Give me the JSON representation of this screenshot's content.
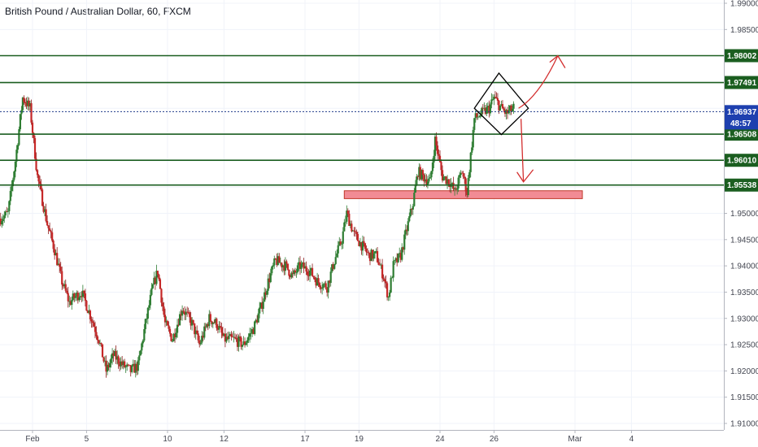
{
  "chart_data": {
    "type": "candlestick",
    "title": "British Pound / Australian Dollar, 60, FXCM",
    "ylim": [
      1.9088,
      1.992
    ],
    "y_ticks": [
      "1.99000",
      "1.98500",
      "1.98000",
      "1.97500",
      "1.97000",
      "1.96500",
      "1.96000",
      "1.95500",
      "1.95000",
      "1.94500",
      "1.94000",
      "1.93500",
      "1.93000",
      "1.92500",
      "1.92000",
      "1.91500",
      "1.91000"
    ],
    "x_ticks": [
      {
        "label": "Feb",
        "t": 13
      },
      {
        "label": "5",
        "t": 35
      },
      {
        "label": "10",
        "t": 68
      },
      {
        "label": "12",
        "t": 91
      },
      {
        "label": "17",
        "t": 124
      },
      {
        "label": "19",
        "t": 146
      },
      {
        "label": "24",
        "t": 179
      },
      {
        "label": "26",
        "t": 201
      },
      {
        "label": "Mar",
        "t": 234
      },
      {
        "label": "4",
        "t": 257
      }
    ],
    "horizontal_levels": [
      {
        "value": 1.98002,
        "label": "1.98002"
      },
      {
        "value": 1.97491,
        "label": "1.97491"
      },
      {
        "value": 1.96508,
        "label": "1.96508"
      },
      {
        "value": 1.9601,
        "label": "1.96010"
      },
      {
        "value": 1.95538,
        "label": "1.95538"
      }
    ],
    "current_price": {
      "value": 1.96937,
      "label": "1.96937",
      "countdown": "48:57"
    },
    "support_zone": {
      "t_start": 140,
      "t_end": 237,
      "y_top": 1.9543,
      "y_bottom": 1.9528
    },
    "candle_path": [
      [
        0,
        1.949
      ],
      [
        3,
        1.95
      ],
      [
        6,
        1.96
      ],
      [
        9,
        1.972
      ],
      [
        12,
        1.97
      ],
      [
        15,
        1.957
      ],
      [
        19,
        1.948
      ],
      [
        22,
        1.943
      ],
      [
        25,
        1.937
      ],
      [
        28,
        1.933
      ],
      [
        30,
        1.934
      ],
      [
        33,
        1.935
      ],
      [
        37,
        1.93
      ],
      [
        40,
        1.926
      ],
      [
        43,
        1.92
      ],
      [
        46,
        1.923
      ],
      [
        50,
        1.921
      ],
      [
        53,
        1.92
      ],
      [
        56,
        1.921
      ],
      [
        59,
        1.929
      ],
      [
        62,
        1.936
      ],
      [
        64,
        1.939
      ],
      [
        67,
        1.929
      ],
      [
        70,
        1.926
      ],
      [
        74,
        1.932
      ],
      [
        78,
        1.929
      ],
      [
        81,
        1.925
      ],
      [
        85,
        1.93
      ],
      [
        88,
        1.929
      ],
      [
        91,
        1.926
      ],
      [
        95,
        1.926
      ],
      [
        99,
        1.925
      ],
      [
        103,
        1.928
      ],
      [
        106,
        1.932
      ],
      [
        109,
        1.937
      ],
      [
        112,
        1.941
      ],
      [
        116,
        1.94
      ],
      [
        119,
        1.938
      ],
      [
        122,
        1.94
      ],
      [
        126,
        1.939
      ],
      [
        129,
        1.937
      ],
      [
        133,
        1.936
      ],
      [
        136,
        1.941
      ],
      [
        139,
        1.945
      ],
      [
        141,
        1.95
      ],
      [
        144,
        1.946
      ],
      [
        147,
        1.944
      ],
      [
        150,
        1.942
      ],
      [
        153,
        1.942
      ],
      [
        156,
        1.938
      ],
      [
        158,
        1.934
      ],
      [
        160,
        1.94
      ],
      [
        163,
        1.942
      ],
      [
        165,
        1.946
      ],
      [
        168,
        1.952
      ],
      [
        170,
        1.958
      ],
      [
        172,
        1.957
      ],
      [
        175,
        1.956
      ],
      [
        177,
        1.964
      ],
      [
        180,
        1.957
      ],
      [
        183,
        1.956
      ],
      [
        185,
        1.954
      ],
      [
        188,
        1.958
      ],
      [
        190,
        1.954
      ],
      [
        193,
        1.968
      ],
      [
        196,
        1.969
      ],
      [
        199,
        1.97
      ],
      [
        201,
        1.972
      ],
      [
        204,
        1.97
      ],
      [
        206,
        1.969
      ],
      [
        209,
        1.97
      ]
    ],
    "arrows": [
      {
        "direction": "up",
        "from": [
          211,
          1.97
        ],
        "to": [
          227,
          1.98
        ]
      },
      {
        "direction": "down",
        "from": [
          212,
          1.968
        ],
        "to": [
          213,
          1.956
        ]
      }
    ],
    "diamond": {
      "left": [
        193,
        1.97
      ],
      "top": [
        203,
        1.9767
      ],
      "right": [
        215,
        1.97
      ],
      "bottom": [
        204,
        1.965
      ]
    }
  }
}
